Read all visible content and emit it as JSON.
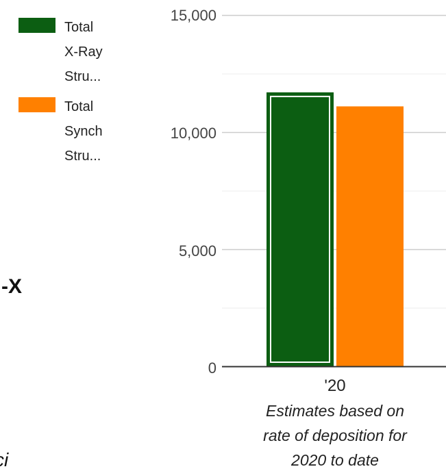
{
  "side_fragments": {
    "left_text": "-X",
    "bottom_text": "ci"
  },
  "chart_data": {
    "type": "bar",
    "categories": [
      "'20"
    ],
    "series": [
      {
        "name_lines": [
          "Total",
          "X-Ray",
          "Stru..."
        ],
        "values": [
          11700
        ],
        "color": "#0c5e12",
        "selected": true
      },
      {
        "name_lines": [
          "Total",
          "Synch",
          "Stru..."
        ],
        "values": [
          11100
        ],
        "color": "#ff8000"
      }
    ],
    "ylim": [
      0,
      15000
    ],
    "yticks": [
      "15,000",
      "10,000",
      "5,000",
      "0"
    ],
    "ytick_values": [
      15000,
      10000,
      5000,
      0
    ],
    "minor_gridlines": [
      2500,
      7500,
      12500
    ],
    "grid": true,
    "legend_position": "left",
    "annotation_lines": [
      "Estimates based on",
      "rate of deposition for",
      "2020 to date"
    ]
  }
}
